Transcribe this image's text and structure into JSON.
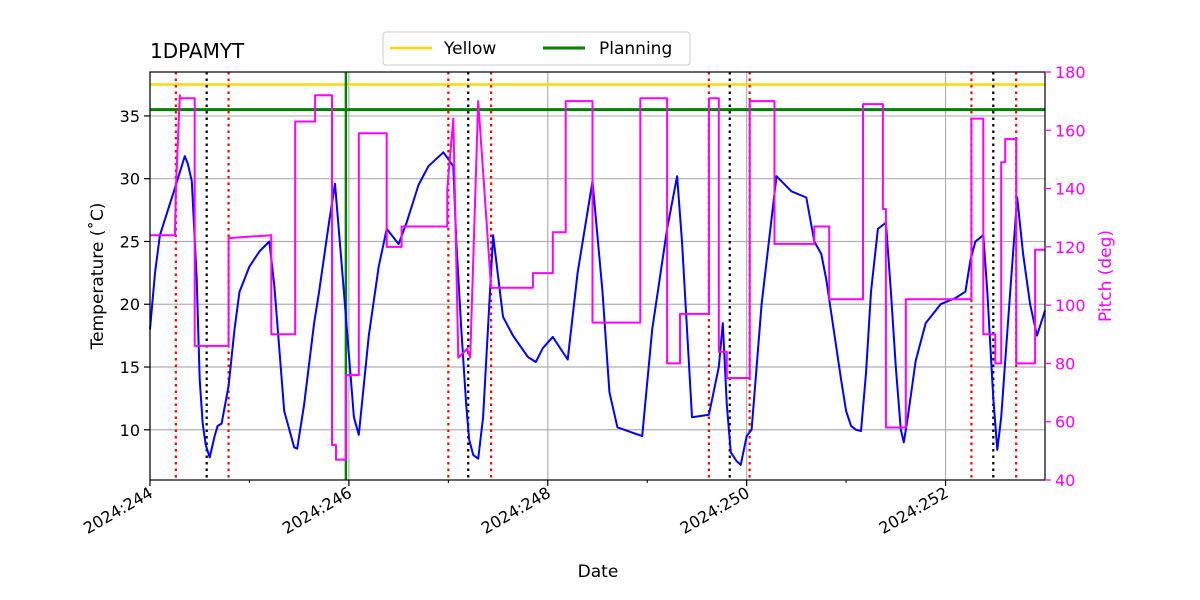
{
  "chart_data": {
    "type": "line",
    "title": "1DPAMYT",
    "xlabel": "Date",
    "ylabel_left": "Temperature ($^\\circ$C)",
    "ylabel_left_display": "Temperature (˚C)",
    "ylabel_right": "Pitch (deg)",
    "xlim": [
      244.0,
      253.0
    ],
    "ylim_left": [
      6,
      38.5
    ],
    "ylim_right": [
      40,
      180
    ],
    "x_ticks": [
      244,
      246,
      248,
      250,
      252
    ],
    "x_tick_labels": [
      "2024:244",
      "2024:246",
      "2024:248",
      "2024:250",
      "2024:252"
    ],
    "y_left_ticks": [
      10,
      15,
      20,
      25,
      30,
      35
    ],
    "y_right_ticks": [
      40,
      60,
      80,
      100,
      120,
      140,
      160,
      180
    ],
    "grid": true,
    "legend_position": "top-center",
    "colors": {
      "temperature": "#0000ff",
      "pitch": "#ff00ff",
      "yellow": "#ffd700",
      "planning": "#008000",
      "red_vlines": "#ff0000",
      "black_vlines": "#000000",
      "right_axis": "#ff00ff"
    },
    "legend": [
      {
        "label": "Yellow",
        "color": "#ffd700"
      },
      {
        "label": "Planning",
        "color": "#008000"
      }
    ],
    "hlines": [
      {
        "name": "Yellow",
        "y": 37.5
      },
      {
        "name": "Planning",
        "y": 35.5
      }
    ],
    "planning_vline_x": 245.97,
    "red_vlines_x": [
      244.26,
      244.79,
      247.0,
      247.43,
      249.62,
      250.03,
      252.26,
      252.71
    ],
    "black_vlines_x": [
      244.57,
      247.2,
      249.83,
      252.48
    ],
    "series": [
      {
        "name": "Temperature",
        "axis": "left",
        "x": [
          244.0,
          244.05,
          244.1,
          244.2,
          244.26,
          244.35,
          244.38,
          244.42,
          244.47,
          244.5,
          244.53,
          244.56,
          244.6,
          244.65,
          244.68,
          244.72,
          244.79,
          244.85,
          244.9,
          245.0,
          245.1,
          245.2,
          245.25,
          245.35,
          245.45,
          245.48,
          245.55,
          245.65,
          245.7,
          245.8,
          245.86,
          245.95,
          246.05,
          246.1,
          246.2,
          246.3,
          246.38,
          246.5,
          246.58,
          246.7,
          246.8,
          246.95,
          247.05,
          247.08,
          247.13,
          247.18,
          247.21,
          247.25,
          247.3,
          247.35,
          247.45,
          247.55,
          247.65,
          247.8,
          247.88,
          247.95,
          248.05,
          248.15,
          248.2,
          248.3,
          248.45,
          248.55,
          248.62,
          248.7,
          248.95,
          249.05,
          249.2,
          249.3,
          249.35,
          249.45,
          249.62,
          249.72,
          249.76,
          249.8,
          249.84,
          249.9,
          249.94,
          250.0,
          250.05,
          250.15,
          250.3,
          250.45,
          250.6,
          250.68,
          250.75,
          250.8,
          250.95,
          251.0,
          251.05,
          251.1,
          251.15,
          251.2,
          251.25,
          251.32,
          251.4,
          251.45,
          251.5,
          251.55,
          251.58,
          251.62,
          251.7,
          251.8,
          251.95,
          252.1,
          252.2,
          252.25,
          252.3,
          252.38,
          252.42,
          252.48,
          252.52,
          252.56,
          252.65,
          252.72,
          252.78,
          252.85,
          252.92,
          253.0
        ],
        "y": [
          18.0,
          22.5,
          25.5,
          28.0,
          29.5,
          31.8,
          31.2,
          29.8,
          22.0,
          14.0,
          10.5,
          8.8,
          7.8,
          9.5,
          10.3,
          10.5,
          13.5,
          18.0,
          21.0,
          23.0,
          24.2,
          25.0,
          21.5,
          11.5,
          8.6,
          8.5,
          12.0,
          18.5,
          21.0,
          26.5,
          29.6,
          21.0,
          11.0,
          9.6,
          17.5,
          23.0,
          26.0,
          24.8,
          26.5,
          29.5,
          31.0,
          32.1,
          31.0,
          25.0,
          18.0,
          12.0,
          9.2,
          8.0,
          7.7,
          11.0,
          25.5,
          19.0,
          17.5,
          15.8,
          15.4,
          16.5,
          17.4,
          16.2,
          15.6,
          22.5,
          29.8,
          21.0,
          13.0,
          10.2,
          9.5,
          18.0,
          26.0,
          30.2,
          25.0,
          11.0,
          11.2,
          15.0,
          18.5,
          12.0,
          8.2,
          7.5,
          7.2,
          9.5,
          10.0,
          20.0,
          30.2,
          29.0,
          28.5,
          25.0,
          24.0,
          22.0,
          14.0,
          11.5,
          10.3,
          10.0,
          9.9,
          14.5,
          21.0,
          26.0,
          26.5,
          21.0,
          15.0,
          10.0,
          9.0,
          11.0,
          15.5,
          18.5,
          20.0,
          20.5,
          21.0,
          23.5,
          25.0,
          25.5,
          21.0,
          12.5,
          8.4,
          11.0,
          21.0,
          28.5,
          24.0,
          20.0,
          17.5,
          19.5
        ]
      },
      {
        "name": "Pitch",
        "axis": "right",
        "x": [
          244.0,
          244.25,
          244.26,
          244.3,
          244.3,
          244.45,
          244.45,
          244.79,
          244.79,
          245.22,
          245.22,
          245.46,
          245.46,
          245.66,
          245.66,
          245.83,
          245.83,
          245.87,
          245.87,
          245.97,
          245.97,
          246.1,
          246.1,
          246.38,
          246.38,
          246.53,
          246.53,
          246.99,
          246.99,
          247.05,
          247.05,
          247.1,
          247.1,
          247.19,
          247.19,
          247.22,
          247.22,
          247.3,
          247.3,
          247.43,
          247.43,
          247.85,
          247.85,
          248.05,
          248.05,
          248.18,
          248.18,
          248.45,
          248.45,
          248.93,
          248.93,
          249.2,
          249.2,
          249.33,
          249.33,
          249.62,
          249.62,
          249.72,
          249.72,
          249.8,
          249.8,
          250.03,
          250.03,
          250.28,
          250.28,
          250.68,
          250.68,
          250.83,
          250.83,
          251.17,
          251.17,
          251.37,
          251.37,
          251.4,
          251.4,
          251.43,
          251.43,
          251.6,
          251.6,
          252.26,
          252.26,
          252.38,
          252.38,
          252.5,
          252.5,
          252.56,
          252.56,
          252.6,
          252.6,
          252.71,
          252.71,
          252.9,
          252.9,
          253.0
        ],
        "y": [
          124.0,
          124.0,
          140.0,
          172.0,
          171.0,
          171.0,
          86.0,
          86.0,
          123.0,
          124.0,
          90.0,
          90.0,
          163.0,
          163.0,
          172.0,
          172.0,
          52.0,
          52.0,
          47.0,
          47.0,
          76.0,
          76.0,
          159.0,
          159.0,
          120.0,
          120.0,
          127.0,
          127.0,
          140.0,
          164.0,
          164.0,
          82.0,
          82.0,
          85.0,
          85.0,
          82.0,
          82.0,
          170.0,
          170.0,
          106.0,
          106.0,
          106.0,
          111.0,
          111.0,
          125.0,
          125.0,
          170.0,
          170.0,
          94.0,
          94.0,
          171.0,
          171.0,
          80.0,
          80.0,
          97.0,
          97.0,
          171.0,
          171.0,
          84.0,
          84.0,
          75.0,
          75.0,
          170.0,
          170.0,
          121.0,
          121.0,
          127.0,
          127.0,
          102.0,
          102.0,
          169.0,
          169.0,
          133.0,
          133.0,
          58.0,
          58.0,
          58.0,
          58.0,
          102.0,
          102.0,
          164.0,
          164.0,
          90.0,
          90.0,
          80.0,
          80.0,
          149.0,
          149.0,
          157.0,
          157.0,
          80.0,
          80.0,
          119.0,
          119.0
        ]
      }
    ]
  }
}
